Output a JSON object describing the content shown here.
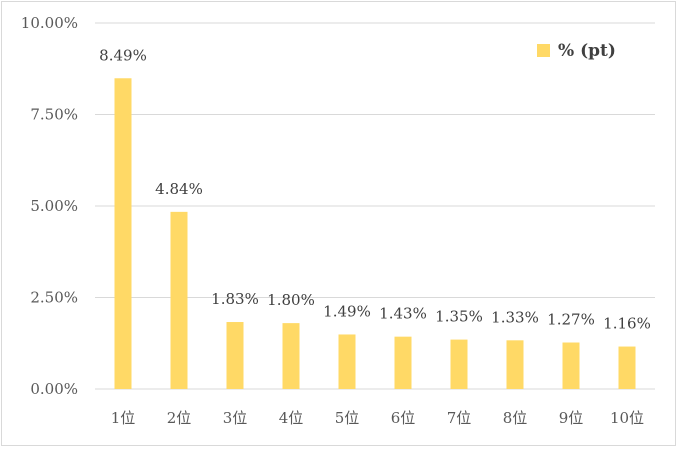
{
  "chart_data": {
    "type": "bar",
    "categories": [
      "1位",
      "2位",
      "3位",
      "4位",
      "5位",
      "6位",
      "7位",
      "8位",
      "9位",
      "10位"
    ],
    "series": [
      {
        "name": "% (pt)",
        "values": [
          8.49,
          4.84,
          1.83,
          1.8,
          1.49,
          1.43,
          1.35,
          1.33,
          1.27,
          1.16
        ],
        "labels": [
          "8.49%",
          "4.84%",
          "1.83%",
          "1.80%",
          "1.49%",
          "1.43%",
          "1.35%",
          "1.33%",
          "1.27%",
          "1.16%"
        ]
      }
    ],
    "ylim": [
      0,
      10
    ],
    "yticks": [
      0,
      2.5,
      5,
      7.5,
      10
    ],
    "ytick_labels": [
      "0.00%",
      "2.50%",
      "5.00%",
      "7.50%",
      "10.00%"
    ],
    "grid": true,
    "legend_position": "top-right",
    "bar_color": "#ffd966",
    "grid_color": "#d9d9d9"
  }
}
